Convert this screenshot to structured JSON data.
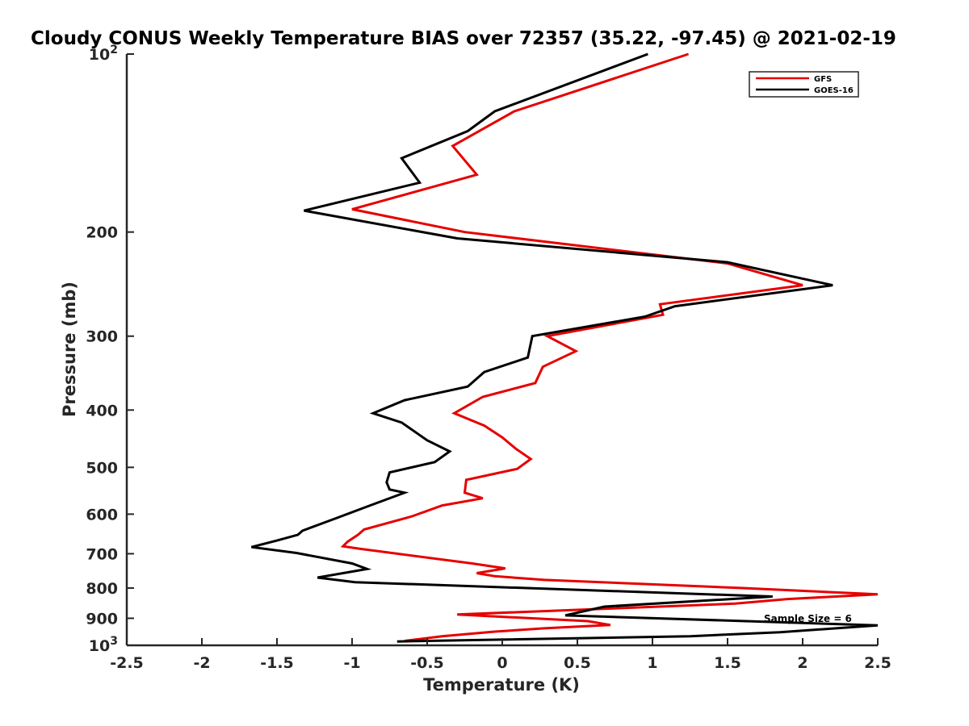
{
  "chart_data": {
    "type": "line",
    "title": "Cloudy CONUS Weekly Temperature BIAS over 72357 (35.22, -97.45) @ 2021-02-19",
    "xlabel": "Temperature (K)",
    "ylabel": "Pressure (mb)",
    "xlim": [
      -2.5,
      2.5
    ],
    "ylim": [
      100,
      1000
    ],
    "yscale": "log",
    "yreversed": true,
    "grid": false,
    "legend_position": "top-right",
    "x_ticks": [
      "-2.5",
      "-2",
      "-1.5",
      "-1",
      "-0.5",
      "0",
      "0.5",
      "1",
      "1.5",
      "2",
      "2.5"
    ],
    "y_ticks": [
      {
        "base": "10",
        "exp": "2",
        "value": 100
      },
      {
        "base": "200",
        "exp": "",
        "value": 200
      },
      {
        "base": "300",
        "exp": "",
        "value": 300
      },
      {
        "base": "400",
        "exp": "",
        "value": 400
      },
      {
        "base": "500",
        "exp": "",
        "value": 500
      },
      {
        "base": "600",
        "exp": "",
        "value": 600
      },
      {
        "base": "700",
        "exp": "",
        "value": 700
      },
      {
        "base": "800",
        "exp": "",
        "value": 800
      },
      {
        "base": "900",
        "exp": "",
        "value": 900
      },
      {
        "base": "10",
        "exp": "3",
        "value": 1000
      }
    ],
    "annotation": "Sample Size = 6",
    "series": [
      {
        "name": "GFS",
        "color": "#e60000",
        "points": [
          [
            1.24,
            100
          ],
          [
            0.08,
            125
          ],
          [
            -0.33,
            143
          ],
          [
            -0.17,
            160
          ],
          [
            -1.0,
            183
          ],
          [
            -0.25,
            200
          ],
          [
            1.5,
            226
          ],
          [
            2.0,
            246
          ],
          [
            1.05,
            265
          ],
          [
            1.07,
            276
          ],
          [
            0.3,
            300
          ],
          [
            0.49,
            318
          ],
          [
            0.27,
            338
          ],
          [
            0.22,
            360
          ],
          [
            -0.13,
            380
          ],
          [
            -0.32,
            405
          ],
          [
            -0.12,
            425
          ],
          [
            0.0,
            445
          ],
          [
            0.09,
            465
          ],
          [
            0.19,
            484
          ],
          [
            0.1,
            503
          ],
          [
            -0.24,
            525
          ],
          [
            -0.25,
            552
          ],
          [
            -0.13,
            564
          ],
          [
            -0.4,
            580
          ],
          [
            -0.6,
            605
          ],
          [
            -0.92,
            637
          ],
          [
            -0.96,
            650
          ],
          [
            -1.03,
            668
          ],
          [
            -1.06,
            680
          ],
          [
            -0.96,
            686
          ],
          [
            -0.2,
            727
          ],
          [
            0.02,
            741
          ],
          [
            -0.17,
            755
          ],
          [
            -0.05,
            764
          ],
          [
            0.28,
            775
          ],
          [
            1.6,
            800
          ],
          [
            2.5,
            820
          ],
          [
            1.9,
            835
          ],
          [
            1.55,
            850
          ],
          [
            -0.3,
            887
          ],
          [
            0.57,
            910
          ],
          [
            0.72,
            924
          ],
          [
            0.28,
            936
          ],
          [
            -0.05,
            948
          ],
          [
            -0.4,
            965
          ],
          [
            -0.65,
            983
          ]
        ]
      },
      {
        "name": "GOES-16",
        "color": "#000000",
        "points": [
          [
            0.97,
            100
          ],
          [
            -0.05,
            125
          ],
          [
            -0.23,
            135
          ],
          [
            -0.67,
            150
          ],
          [
            -0.55,
            165
          ],
          [
            -1.32,
            184
          ],
          [
            -0.3,
            205
          ],
          [
            1.5,
            225
          ],
          [
            2.2,
            246
          ],
          [
            1.15,
            267
          ],
          [
            0.95,
            278
          ],
          [
            0.2,
            300
          ],
          [
            0.17,
            326
          ],
          [
            -0.12,
            345
          ],
          [
            -0.23,
            365
          ],
          [
            -0.65,
            385
          ],
          [
            -0.86,
            405
          ],
          [
            -0.67,
            420
          ],
          [
            -0.5,
            450
          ],
          [
            -0.35,
            470
          ],
          [
            -0.45,
            490
          ],
          [
            -0.75,
            510
          ],
          [
            -0.77,
            530
          ],
          [
            -0.75,
            545
          ],
          [
            -0.65,
            552
          ],
          [
            -0.88,
            580
          ],
          [
            -1.08,
            606
          ],
          [
            -1.33,
            640
          ],
          [
            -1.36,
            650
          ],
          [
            -1.5,
            665
          ],
          [
            -1.67,
            682
          ],
          [
            -1.37,
            698
          ],
          [
            -1.0,
            727
          ],
          [
            -0.9,
            743
          ],
          [
            -1.23,
            768
          ],
          [
            -0.98,
            782
          ],
          [
            1.8,
            827
          ],
          [
            0.68,
            860
          ],
          [
            0.42,
            890
          ],
          [
            2.5,
            925
          ],
          [
            1.85,
            950
          ],
          [
            1.25,
            965
          ],
          [
            -0.7,
            985
          ]
        ]
      }
    ]
  }
}
